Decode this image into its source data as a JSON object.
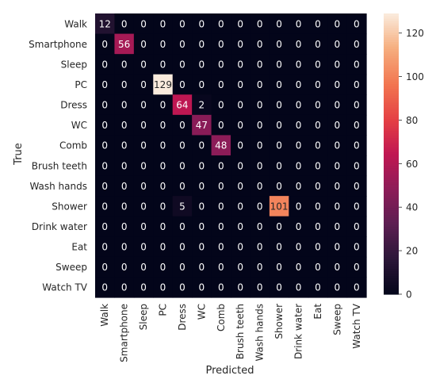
{
  "chart_data": {
    "type": "heatmap",
    "xlabel": "Predicted",
    "ylabel": "True",
    "x_categories": [
      "Walk",
      "Smartphone",
      "Sleep",
      "PC",
      "Dress",
      "WC",
      "Comb",
      "Brush teeth",
      "Wash hands",
      "Shower",
      "Drink water",
      "Eat",
      "Sweep",
      "Watch TV"
    ],
    "y_categories": [
      "Walk",
      "Smartphone",
      "Sleep",
      "PC",
      "Dress",
      "WC",
      "Comb",
      "Brush teeth",
      "Wash hands",
      "Shower",
      "Drink water",
      "Eat",
      "Sweep",
      "Watch TV"
    ],
    "values": [
      [
        12,
        0,
        0,
        0,
        0,
        0,
        0,
        0,
        0,
        0,
        0,
        0,
        0,
        0
      ],
      [
        0,
        56,
        0,
        0,
        0,
        0,
        0,
        0,
        0,
        0,
        0,
        0,
        0,
        0
      ],
      [
        0,
        0,
        0,
        0,
        0,
        0,
        0,
        0,
        0,
        0,
        0,
        0,
        0,
        0
      ],
      [
        0,
        0,
        0,
        129,
        0,
        0,
        0,
        0,
        0,
        0,
        0,
        0,
        0,
        0
      ],
      [
        0,
        0,
        0,
        0,
        64,
        2,
        0,
        0,
        0,
        0,
        0,
        0,
        0,
        0
      ],
      [
        0,
        0,
        0,
        0,
        0,
        47,
        0,
        0,
        0,
        0,
        0,
        0,
        0,
        0
      ],
      [
        0,
        0,
        0,
        0,
        0,
        0,
        48,
        0,
        0,
        0,
        0,
        0,
        0,
        0
      ],
      [
        0,
        0,
        0,
        0,
        0,
        0,
        0,
        0,
        0,
        0,
        0,
        0,
        0,
        0
      ],
      [
        0,
        0,
        0,
        0,
        0,
        0,
        0,
        0,
        0,
        0,
        0,
        0,
        0,
        0
      ],
      [
        0,
        0,
        0,
        0,
        5,
        0,
        0,
        0,
        0,
        101,
        0,
        0,
        0,
        0
      ],
      [
        0,
        0,
        0,
        0,
        0,
        0,
        0,
        0,
        0,
        0,
        0,
        0,
        0,
        0
      ],
      [
        0,
        0,
        0,
        0,
        0,
        0,
        0,
        0,
        0,
        0,
        0,
        0,
        0,
        0
      ],
      [
        0,
        0,
        0,
        0,
        0,
        0,
        0,
        0,
        0,
        0,
        0,
        0,
        0,
        0
      ],
      [
        0,
        0,
        0,
        0,
        0,
        0,
        0,
        0,
        0,
        0,
        0,
        0,
        0,
        0
      ]
    ],
    "colorbar": {
      "colormap": "rocket",
      "range": [
        0,
        129
      ],
      "ticks": [
        0,
        20,
        40,
        60,
        80,
        100,
        120
      ]
    },
    "annotations": true,
    "grid": false,
    "legend": "none"
  }
}
